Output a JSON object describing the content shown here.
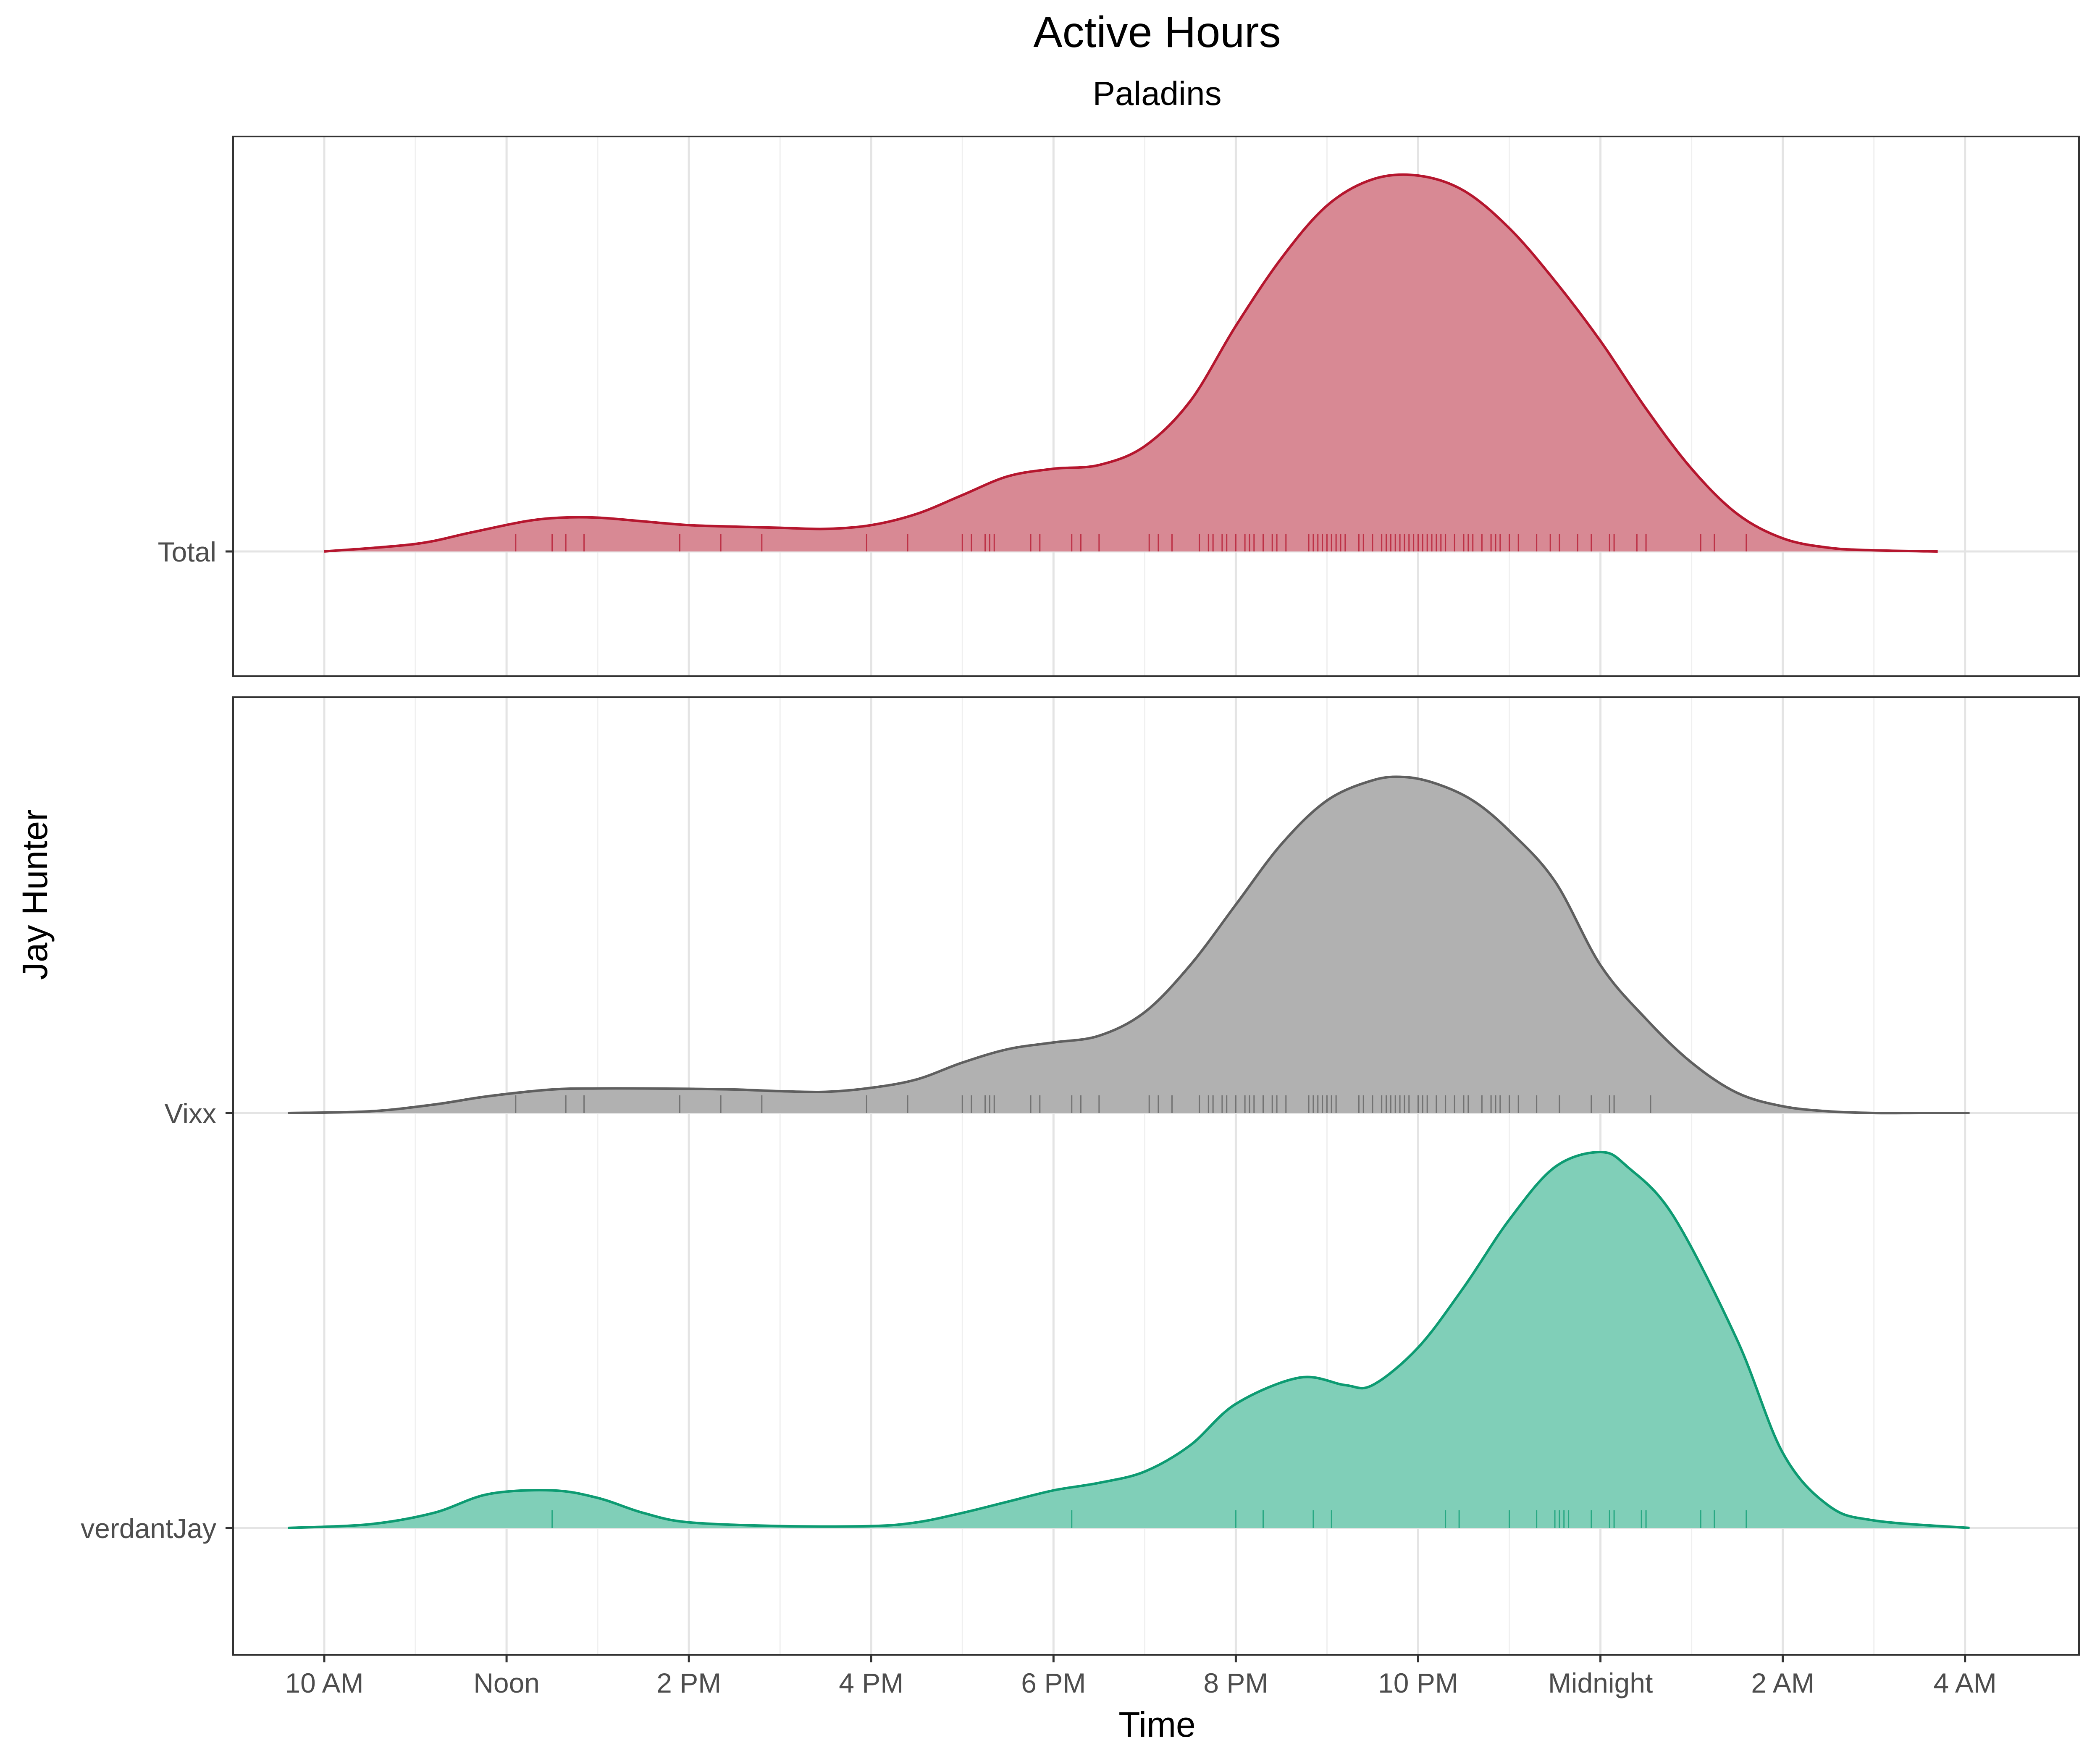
{
  "chart_data": {
    "type": "area",
    "title": "Active Hours",
    "subtitle": "Paladins",
    "xlabel": "Time",
    "ylabel": "Jay Hunter",
    "x_unit": "hours after midnight of the starting day (24 = Midnight, 28 = 4 AM next day)",
    "xlim": [
      9,
      29.25
    ],
    "x_ticks": [
      {
        "value": 10,
        "label": "10 AM"
      },
      {
        "value": 12,
        "label": "Noon"
      },
      {
        "value": 14,
        "label": "2 PM"
      },
      {
        "value": 16,
        "label": "4 PM"
      },
      {
        "value": 18,
        "label": "6 PM"
      },
      {
        "value": 20,
        "label": "8 PM"
      },
      {
        "value": 22,
        "label": "10 PM"
      },
      {
        "value": 24,
        "label": "Midnight"
      },
      {
        "value": 26,
        "label": "2 AM"
      },
      {
        "value": 28,
        "label": "4 AM"
      }
    ],
    "grid": true,
    "legend": "none",
    "panels": [
      {
        "ridges": [
          {
            "label": "Total",
            "color": "#b5162e",
            "fill": "#d88994",
            "x": [
              10,
              11,
              11.6,
              12.2,
              12.6,
              13,
              13.5,
              14,
              14.5,
              15,
              15.5,
              16,
              16.5,
              17,
              17.5,
              18,
              18.5,
              19,
              19.5,
              20,
              20.5,
              21,
              21.5,
              22,
              22.5,
              23,
              23.5,
              24,
              24.5,
              25,
              25.5,
              26,
              26.5,
              27,
              27.7
            ],
            "density": [
              0.0,
              0.02,
              0.05,
              0.08,
              0.09,
              0.09,
              0.08,
              0.07,
              0.066,
              0.063,
              0.06,
              0.07,
              0.1,
              0.15,
              0.2,
              0.22,
              0.23,
              0.28,
              0.4,
              0.6,
              0.78,
              0.92,
              0.99,
              1.0,
              0.96,
              0.86,
              0.72,
              0.56,
              0.38,
              0.22,
              0.1,
              0.035,
              0.01,
              0.003,
              0.0
            ],
            "rug": [
              12.1,
              12.5,
              12.65,
              12.85,
              13.9,
              14.35,
              14.8,
              15.95,
              16.4,
              17.0,
              17.1,
              17.25,
              17.3,
              17.35,
              17.75,
              17.85,
              18.2,
              18.3,
              18.5,
              19.05,
              19.15,
              19.3,
              19.6,
              19.7,
              19.75,
              19.85,
              19.9,
              20.0,
              20.1,
              20.15,
              20.2,
              20.3,
              20.4,
              20.45,
              20.55,
              20.8,
              20.85,
              20.9,
              20.95,
              21.0,
              21.05,
              21.1,
              21.15,
              21.2,
              21.35,
              21.4,
              21.5,
              21.6,
              21.65,
              21.7,
              21.75,
              21.8,
              21.85,
              21.9,
              21.95,
              22.0,
              22.05,
              22.1,
              22.15,
              22.2,
              22.25,
              22.3,
              22.4,
              22.5,
              22.55,
              22.6,
              22.7,
              22.8,
              22.85,
              22.9,
              23.0,
              23.1,
              23.3,
              23.45,
              23.55,
              23.75,
              23.9,
              24.1,
              24.15,
              24.4,
              24.5,
              25.1,
              25.25,
              25.6
            ]
          }
        ]
      },
      {
        "ridges": [
          {
            "label": "Vixx",
            "color": "#5f5f5f",
            "fill": "#b1b1b1",
            "x": [
              9.6,
              10.5,
              11.2,
              11.8,
              12.5,
              13,
              13.5,
              14,
              14.5,
              15,
              15.5,
              16,
              16.5,
              17,
              17.5,
              18,
              18.5,
              19,
              19.5,
              20,
              20.5,
              21,
              21.5,
              21.85,
              22.2,
              22.6,
              23,
              23.5,
              24,
              24.5,
              25,
              25.5,
              26,
              26.5,
              27,
              27.5,
              28.05
            ],
            "density": [
              0.0,
              0.005,
              0.025,
              0.05,
              0.07,
              0.073,
              0.073,
              0.072,
              0.07,
              0.065,
              0.063,
              0.075,
              0.1,
              0.15,
              0.19,
              0.21,
              0.23,
              0.3,
              0.44,
              0.62,
              0.8,
              0.93,
              0.99,
              1.0,
              0.98,
              0.93,
              0.84,
              0.69,
              0.44,
              0.28,
              0.15,
              0.06,
              0.02,
              0.005,
              0.0,
              0.0,
              0.0
            ],
            "rug": [
              12.1,
              12.65,
              12.85,
              13.9,
              14.35,
              14.8,
              15.95,
              16.4,
              17.0,
              17.1,
              17.25,
              17.3,
              17.35,
              17.75,
              17.85,
              18.2,
              18.3,
              18.5,
              19.05,
              19.15,
              19.3,
              19.6,
              19.7,
              19.75,
              19.85,
              19.9,
              20.0,
              20.1,
              20.15,
              20.2,
              20.3,
              20.4,
              20.45,
              20.55,
              20.8,
              20.85,
              20.9,
              20.95,
              21.0,
              21.05,
              21.1,
              21.35,
              21.4,
              21.5,
              21.6,
              21.65,
              21.7,
              21.75,
              21.8,
              21.85,
              21.9,
              22.0,
              22.05,
              22.1,
              22.2,
              22.3,
              22.4,
              22.5,
              22.55,
              22.7,
              22.8,
              22.85,
              22.9,
              23.0,
              23.1,
              23.3,
              23.55,
              23.9,
              24.1,
              24.15,
              24.55
            ]
          },
          {
            "label": "verdantJay",
            "color": "#0d9b72",
            "fill": "#80cfb8",
            "x": [
              9.6,
              10.5,
              11.2,
              11.8,
              12.5,
              13,
              13.5,
              14,
              15,
              16,
              16.5,
              17,
              17.5,
              18,
              18.5,
              19,
              19.5,
              20,
              20.7,
              21.2,
              21.5,
              22,
              22.5,
              23,
              23.5,
              24,
              24.3,
              24.8,
              25.5,
              26,
              26.5,
              27,
              28.05
            ],
            "density": [
              0.0,
              0.01,
              0.04,
              0.09,
              0.1,
              0.08,
              0.04,
              0.015,
              0.005,
              0.005,
              0.015,
              0.04,
              0.07,
              0.1,
              0.12,
              0.15,
              0.22,
              0.33,
              0.4,
              0.38,
              0.38,
              0.48,
              0.64,
              0.82,
              0.96,
              1.0,
              0.96,
              0.83,
              0.5,
              0.2,
              0.06,
              0.02,
              0.0
            ],
            "rug": [
              12.5,
              18.2,
              20.0,
              20.3,
              20.85,
              21.05,
              22.3,
              22.45,
              23.0,
              23.3,
              23.5,
              23.55,
              23.6,
              23.65,
              23.9,
              24.1,
              24.15,
              24.45,
              24.5,
              25.1,
              25.25,
              25.6
            ]
          }
        ]
      }
    ]
  }
}
